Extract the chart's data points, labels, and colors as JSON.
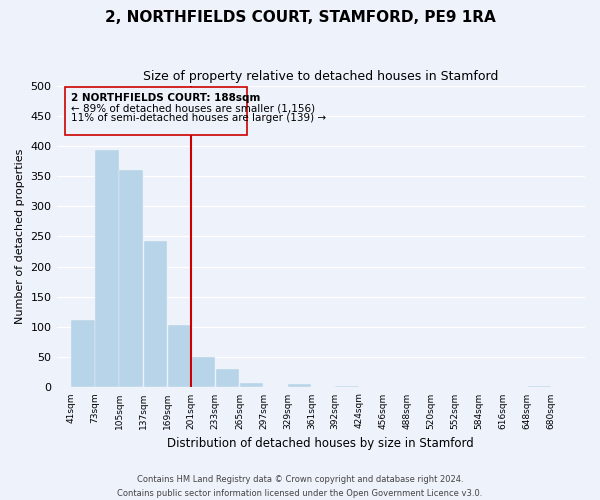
{
  "title": "2, NORTHFIELDS COURT, STAMFORD, PE9 1RA",
  "subtitle": "Size of property relative to detached houses in Stamford",
  "xlabel": "Distribution of detached houses by size in Stamford",
  "ylabel": "Number of detached properties",
  "bin_labels": [
    "41sqm",
    "73sqm",
    "105sqm",
    "137sqm",
    "169sqm",
    "201sqm",
    "233sqm",
    "265sqm",
    "297sqm",
    "329sqm",
    "361sqm",
    "392sqm",
    "424sqm",
    "456sqm",
    "488sqm",
    "520sqm",
    "552sqm",
    "584sqm",
    "616sqm",
    "648sqm",
    "680sqm"
  ],
  "bin_edges": [
    41,
    73,
    105,
    137,
    169,
    201,
    233,
    265,
    297,
    329,
    361,
    392,
    424,
    456,
    488,
    520,
    552,
    584,
    616,
    648,
    680
  ],
  "bar_heights": [
    112,
    393,
    360,
    242,
    104,
    50,
    30,
    8,
    0,
    5,
    0,
    2,
    0,
    0,
    0,
    0,
    0,
    0,
    0,
    2
  ],
  "bar_color": "#b8d4e8",
  "reference_line_x": 201,
  "reference_line_color": "#cc0000",
  "annotation_title": "2 NORTHFIELDS COURT: 188sqm",
  "annotation_line1": "← 89% of detached houses are smaller (1,156)",
  "annotation_line2": "11% of semi-detached houses are larger (139) →",
  "ylim": [
    0,
    500
  ],
  "yticks": [
    0,
    50,
    100,
    150,
    200,
    250,
    300,
    350,
    400,
    450,
    500
  ],
  "footer_line1": "Contains HM Land Registry data © Crown copyright and database right 2024.",
  "footer_line2": "Contains public sector information licensed under the Open Government Licence v3.0.",
  "bg_color": "#eef2fb"
}
